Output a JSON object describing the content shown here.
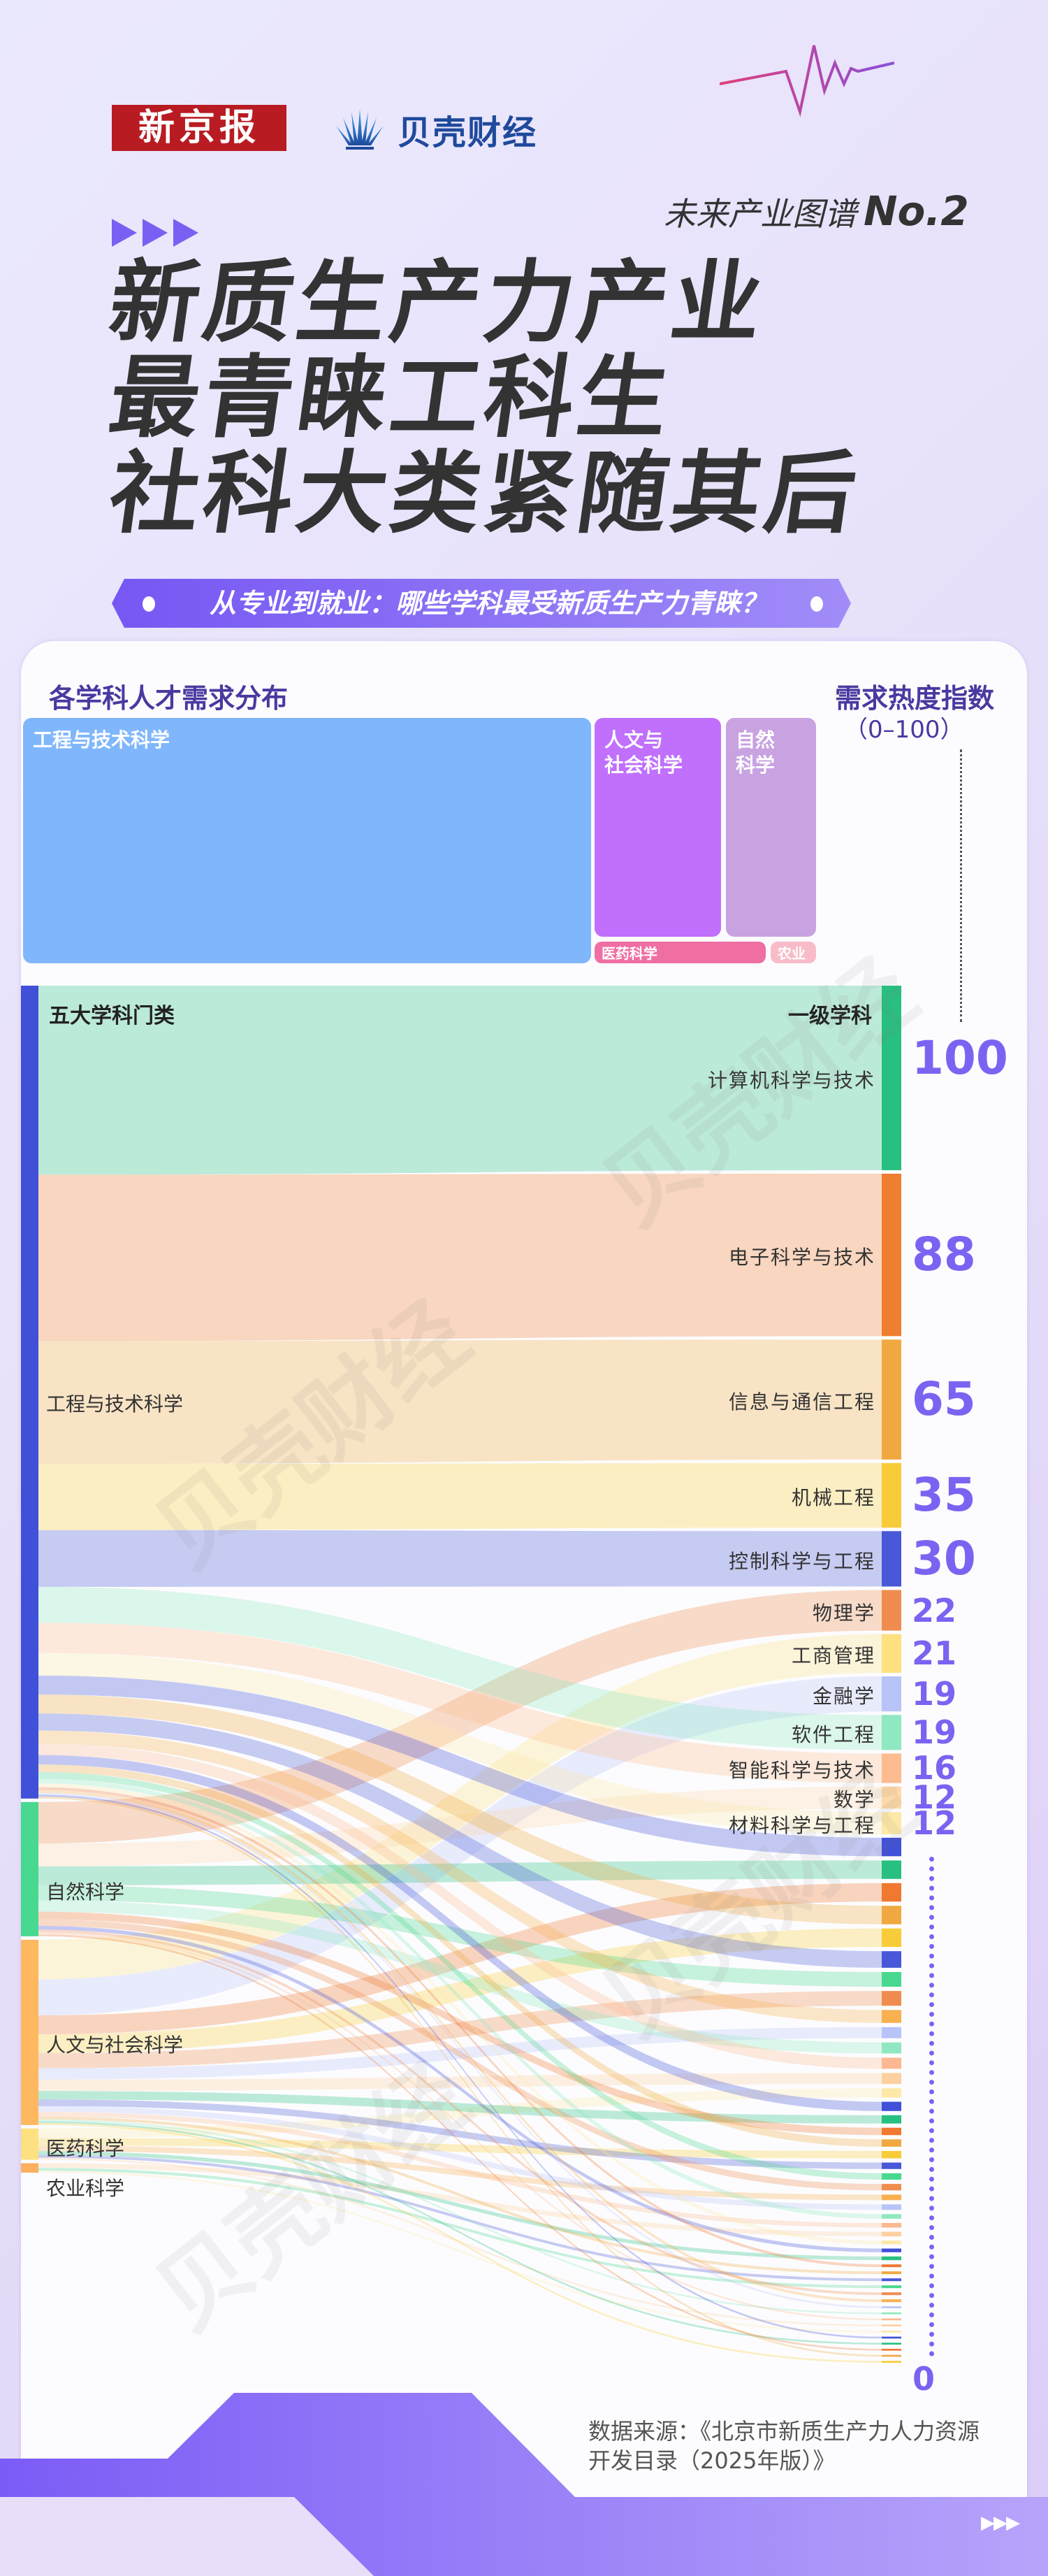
{
  "header": {
    "logo_xjb": "新京报",
    "logo_bk": "贝壳财经",
    "series": "未来产业图谱",
    "series_no": "No.2"
  },
  "title": {
    "lines": [
      "新质生产力产业",
      "最青睐工科生",
      "社科大类紧随其后"
    ],
    "subtitle": "从专业到就业：哪些学科最受新质生产力青睐？"
  },
  "treemap": {
    "heading": "各学科人才需求分布",
    "blocks": [
      {
        "label": "工程与技术科学",
        "color": "#80b7fc"
      },
      {
        "label": "人文与\n社会科学",
        "color": "#c070fc"
      },
      {
        "label": "自然\n科学",
        "color": "#c9a2e2"
      },
      {
        "label": "医药科学",
        "color": "#f06fa2"
      },
      {
        "label": "农业",
        "color": "#f8bcc8"
      }
    ]
  },
  "index_heading": "需求热度指数",
  "index_range": "（0–100）",
  "watermark": "贝壳财经",
  "chart_data": {
    "type": "sankey",
    "left_header": "五大学科门类",
    "right_header": "一级学科",
    "scale_min_label": "0",
    "sources": [
      {
        "id": "E",
        "name": "工程与技术科学",
        "color": "#4050d8"
      },
      {
        "id": "N",
        "name": "自然科学",
        "color": "#48d890"
      },
      {
        "id": "H",
        "name": "人文与社会科学",
        "color": "#fdb860"
      },
      {
        "id": "M",
        "name": "医药科学",
        "color": "#fde080"
      },
      {
        "id": "A",
        "name": "农业科学",
        "color": "#fcb060"
      }
    ],
    "targets": [
      {
        "name": "计算机科学与技术",
        "value": 100,
        "source": "E",
        "color": "#28c080"
      },
      {
        "name": "电子科学与技术",
        "value": 88,
        "source": "E",
        "color": "#f07e30"
      },
      {
        "name": "信息与通信工程",
        "value": 65,
        "source": "E",
        "color": "#f0a840"
      },
      {
        "name": "机械工程",
        "value": 35,
        "source": "E",
        "color": "#f8cc38"
      },
      {
        "name": "控制科学与工程",
        "value": 30,
        "source": "E",
        "color": "#4858d8"
      },
      {
        "name": "物理学",
        "value": 22,
        "source": "N",
        "color": "#f08c50"
      },
      {
        "name": "工商管理",
        "value": 21,
        "source": "H",
        "color": "#fde080"
      },
      {
        "name": "金融学",
        "value": 19,
        "source": "H",
        "color": "#b8c4f8"
      },
      {
        "name": "软件工程",
        "value": 19,
        "source": "E",
        "color": "#90e8c0"
      },
      {
        "name": "智能科学与技术",
        "value": 16,
        "source": "E",
        "color": "#fcbc90"
      },
      {
        "name": "数学",
        "value": 12,
        "source": "N",
        "color": "#fdd8a8"
      },
      {
        "name": "材料科学与工程",
        "value": 12,
        "source": "E",
        "color": "#fde8a8"
      },
      {
        "name": "",
        "value": 10,
        "source": "E",
        "color": "#4050d8"
      },
      {
        "name": "",
        "value": 10,
        "source": "N",
        "color": "#28c080"
      },
      {
        "name": "",
        "value": 10,
        "source": "H",
        "color": "#f07830"
      },
      {
        "name": "",
        "value": 10,
        "source": "E",
        "color": "#f0a840"
      },
      {
        "name": "",
        "value": 10,
        "source": "H",
        "color": "#f8cc38"
      },
      {
        "name": "",
        "value": 9,
        "source": "E",
        "color": "#4858d8"
      },
      {
        "name": "",
        "value": 8,
        "source": "N",
        "color": "#48d890"
      },
      {
        "name": "",
        "value": 8,
        "source": "H",
        "color": "#f08c50"
      },
      {
        "name": "",
        "value": 7,
        "source": "E",
        "color": "#f8b050"
      },
      {
        "name": "",
        "value": 6,
        "source": "H",
        "color": "#b8c4f8"
      },
      {
        "name": "",
        "value": 6,
        "source": "N",
        "color": "#90e8c0"
      },
      {
        "name": "",
        "value": 6,
        "source": "E",
        "color": "#fcb890"
      },
      {
        "name": "",
        "value": 6,
        "source": "H",
        "color": "#fdd0a0"
      },
      {
        "name": "",
        "value": 5,
        "source": "M",
        "color": "#fde8a8"
      },
      {
        "name": "",
        "value": 5,
        "source": "E",
        "color": "#4050d8"
      },
      {
        "name": "",
        "value": 4.5,
        "source": "H",
        "color": "#28c080"
      },
      {
        "name": "",
        "value": 4,
        "source": "N",
        "color": "#f07830"
      },
      {
        "name": "",
        "value": 4,
        "source": "E",
        "color": "#f0a840"
      },
      {
        "name": "",
        "value": 4,
        "source": "M",
        "color": "#f8cc38"
      },
      {
        "name": "",
        "value": 3.5,
        "source": "H",
        "color": "#4858d8"
      },
      {
        "name": "",
        "value": 3.5,
        "source": "E",
        "color": "#48d890"
      },
      {
        "name": "",
        "value": 3.5,
        "source": "N",
        "color": "#f08c50"
      },
      {
        "name": "",
        "value": 3,
        "source": "M",
        "color": "#f8b050"
      },
      {
        "name": "",
        "value": 3,
        "source": "H",
        "color": "#b8c4f8"
      },
      {
        "name": "",
        "value": 2.5,
        "source": "E",
        "color": "#90e8c0"
      },
      {
        "name": "",
        "value": 2.5,
        "source": "H",
        "color": "#fcb890"
      },
      {
        "name": "",
        "value": 2.5,
        "source": "A",
        "color": "#fdd0a0"
      },
      {
        "name": "",
        "value": 2,
        "source": "E",
        "color": "#fde8a8"
      },
      {
        "name": "",
        "value": 2,
        "source": "N",
        "color": "#4050d8"
      },
      {
        "name": "",
        "value": 2,
        "source": "M",
        "color": "#28c080"
      },
      {
        "name": "",
        "value": 1.5,
        "source": "E",
        "color": "#f07830"
      },
      {
        "name": "",
        "value": 1.5,
        "source": "H",
        "color": "#f0a840"
      },
      {
        "name": "",
        "value": 1.5,
        "source": "M",
        "color": "#4858d8"
      },
      {
        "name": "",
        "value": 1.5,
        "source": "A",
        "color": "#48d890"
      },
      {
        "name": "",
        "value": 1.5,
        "source": "N",
        "color": "#f08c50"
      },
      {
        "name": "",
        "value": 1.5,
        "source": "E",
        "color": "#f8b050"
      },
      {
        "name": "",
        "value": 1,
        "source": "E",
        "color": "#b8c4f8"
      },
      {
        "name": "",
        "value": 1,
        "source": "H",
        "color": "#90e8c0"
      },
      {
        "name": "",
        "value": 1,
        "source": "N",
        "color": "#fcb890"
      },
      {
        "name": "",
        "value": 1,
        "source": "M",
        "color": "#fdd0a0"
      },
      {
        "name": "",
        "value": 1,
        "source": "A",
        "color": "#fde8a8"
      },
      {
        "name": "",
        "value": 1,
        "source": "E",
        "color": "#4050d8"
      },
      {
        "name": "",
        "value": 1,
        "source": "H",
        "color": "#28c080"
      },
      {
        "name": "",
        "value": 1,
        "source": "N",
        "color": "#f07830"
      },
      {
        "name": "",
        "value": 1,
        "source": "E",
        "color": "#f0a840"
      },
      {
        "name": "",
        "value": 1,
        "source": "H",
        "color": "#f8cc38"
      }
    ]
  },
  "footer": {
    "source_line1": "数据来源：《北京市新质生产力人力资源",
    "source_line2": "开发目录（2025年版）》"
  }
}
